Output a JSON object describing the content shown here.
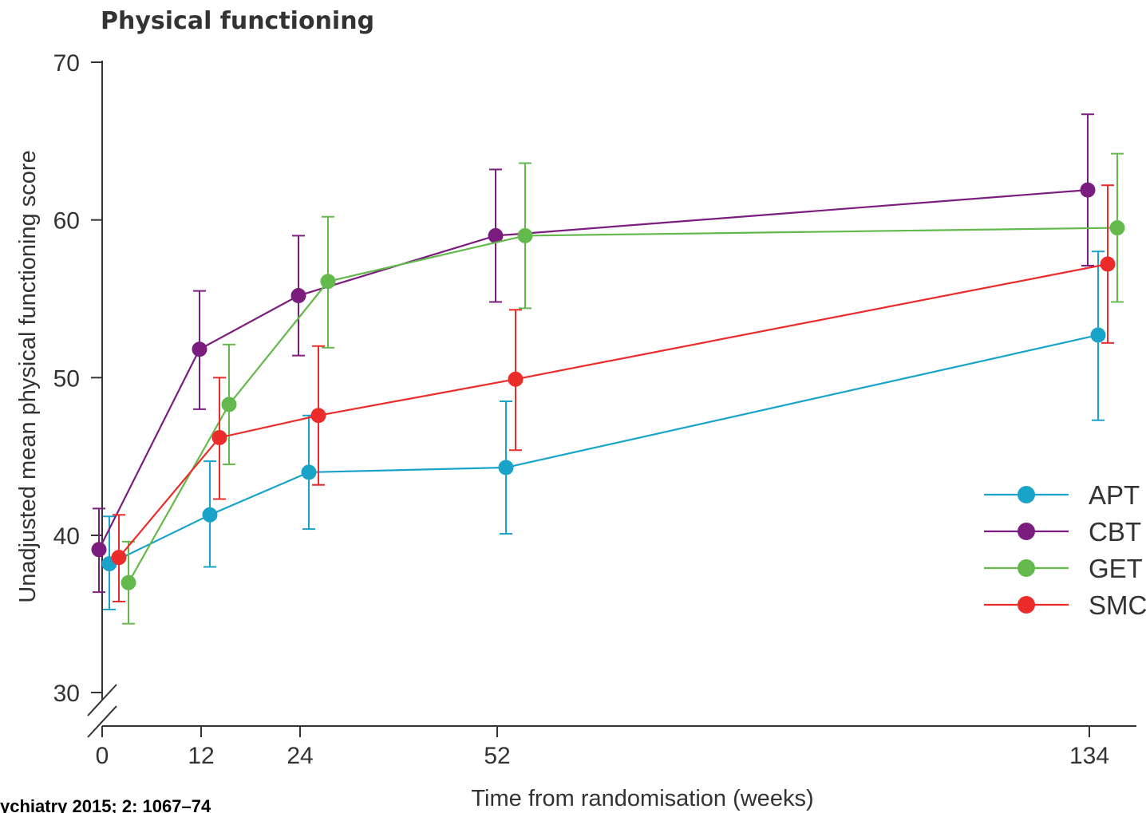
{
  "chart_data": {
    "type": "line",
    "title": "Physical functioning",
    "xlabel": "Time from randomisation (weeks)",
    "ylabel": "Unadjusted mean physical functioning score",
    "x_ticks": [
      0,
      12,
      24,
      52,
      134
    ],
    "y_ticks": [
      30,
      40,
      50,
      60,
      70
    ],
    "ylim": [
      30,
      70
    ],
    "axis_break": "y-axis break between 30 and 40",
    "legend_position": "bottom-right",
    "grid": false,
    "series": [
      {
        "name": "APT",
        "color": "#1aa3c8",
        "points": [
          {
            "x": 0,
            "y": 38.2,
            "lo": 35.3,
            "hi": 41.2
          },
          {
            "x": 12,
            "y": 41.3,
            "lo": 38.0,
            "hi": 44.7
          },
          {
            "x": 24,
            "y": 44.0,
            "lo": 40.4,
            "hi": 47.6
          },
          {
            "x": 52,
            "y": 44.3,
            "lo": 40.1,
            "hi": 48.5
          },
          {
            "x": 134,
            "y": 52.7,
            "lo": 47.3,
            "hi": 58.0
          }
        ]
      },
      {
        "name": "CBT",
        "color": "#7b1d7e",
        "points": [
          {
            "x": 0,
            "y": 39.1,
            "lo": 36.4,
            "hi": 41.7
          },
          {
            "x": 12,
            "y": 51.8,
            "lo": 48.0,
            "hi": 55.5
          },
          {
            "x": 24,
            "y": 55.2,
            "lo": 51.4,
            "hi": 59.0
          },
          {
            "x": 52,
            "y": 59.0,
            "lo": 54.8,
            "hi": 63.2
          },
          {
            "x": 134,
            "y": 61.9,
            "lo": 57.1,
            "hi": 66.7
          }
        ]
      },
      {
        "name": "GET",
        "color": "#63b94c",
        "points": [
          {
            "x": 0,
            "y": 37.0,
            "lo": 34.4,
            "hi": 39.6
          },
          {
            "x": 12,
            "y": 48.3,
            "lo": 44.5,
            "hi": 52.1
          },
          {
            "x": 24,
            "y": 56.1,
            "lo": 51.9,
            "hi": 60.2
          },
          {
            "x": 52,
            "y": 59.0,
            "lo": 54.4,
            "hi": 63.6
          },
          {
            "x": 134,
            "y": 59.5,
            "lo": 54.8,
            "hi": 64.2
          }
        ]
      },
      {
        "name": "SMC",
        "color": "#ec2b2b",
        "points": [
          {
            "x": 0,
            "y": 38.6,
            "lo": 35.8,
            "hi": 41.3
          },
          {
            "x": 12,
            "y": 46.2,
            "lo": 42.3,
            "hi": 50.0
          },
          {
            "x": 24,
            "y": 47.6,
            "lo": 43.2,
            "hi": 52.0
          },
          {
            "x": 52,
            "y": 49.9,
            "lo": 45.4,
            "hi": 54.3
          },
          {
            "x": 134,
            "y": 57.2,
            "lo": 52.2,
            "hi": 62.2
          }
        ]
      }
    ]
  },
  "footer": {
    "source": "ychiatry 2015; 2: 1067–74"
  }
}
